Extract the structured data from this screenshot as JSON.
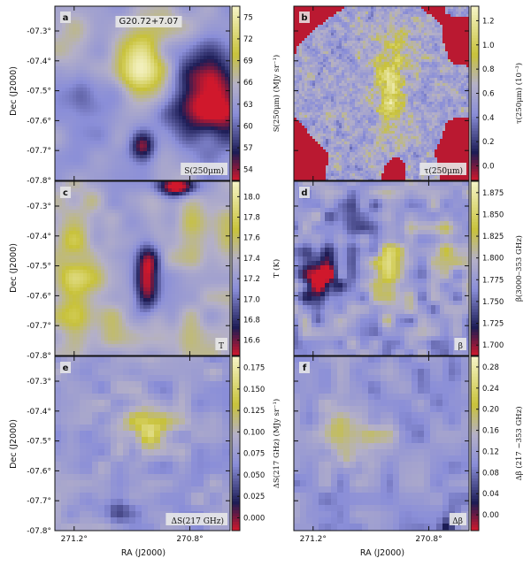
{
  "figure": {
    "title": "G20.72+7.07",
    "dec_ticks": [
      "-07.3°",
      "-07.4°",
      "-07.5°",
      "-07.6°",
      "-07.7°",
      "-07.8°"
    ],
    "ra_ticks": [
      "271.2°",
      "270.8°"
    ],
    "dec_label": "Dec (J2000)",
    "ra_label": "RA (J2000)",
    "colormap": [
      "#d0182c",
      "#1c1c55",
      "#8a8ed8",
      "#b4b0c8",
      "#c8c23a",
      "#f6f4c8"
    ]
  },
  "panels": [
    {
      "letter": "a",
      "box_label": "S(250μm)",
      "cbar_label": "S(250μm) (MJy sr⁻¹)",
      "cbar_ticks": [
        "75",
        "72",
        "69",
        "66",
        "63",
        "60",
        "57",
        "54"
      ],
      "cbar_range": [
        52.5,
        76.5
      ],
      "cbar_tick_values": [
        75,
        72,
        69,
        66,
        63,
        60,
        57,
        54
      ],
      "map": "smooth_a"
    },
    {
      "letter": "b",
      "box_label": "τ(250μm)",
      "cbar_label": "τ(250μm) (10⁻³)",
      "cbar_ticks": [
        "1.2",
        "1.0",
        "0.8",
        "0.6",
        "0.4",
        "0.2",
        "0.0"
      ],
      "cbar_range": [
        -0.12,
        1.32
      ],
      "cbar_tick_values": [
        1.2,
        1.0,
        0.8,
        0.6,
        0.4,
        0.2,
        0.0
      ],
      "map": "noisy_b"
    },
    {
      "letter": "c",
      "box_label": "T",
      "cbar_label": "T (K)",
      "cbar_ticks": [
        "18.0",
        "17.8",
        "17.6",
        "17.4",
        "17.2",
        "17.0",
        "16.8",
        "16.6"
      ],
      "cbar_range": [
        16.45,
        18.15
      ],
      "cbar_tick_values": [
        18.0,
        17.8,
        17.6,
        17.4,
        17.2,
        17.0,
        16.8,
        16.6
      ],
      "map": "smooth_c"
    },
    {
      "letter": "d",
      "box_label": "β",
      "cbar_label": "β(3000–353 GHz)",
      "cbar_ticks": [
        "1.875",
        "1.850",
        "1.825",
        "1.800",
        "1.775",
        "1.750",
        "1.725",
        "1.700"
      ],
      "cbar_range": [
        1.688,
        1.888
      ],
      "cbar_tick_values": [
        1.875,
        1.85,
        1.825,
        1.8,
        1.775,
        1.75,
        1.725,
        1.7
      ],
      "map": "blocky_d"
    },
    {
      "letter": "e",
      "box_label": "ΔS(217 GHz)",
      "cbar_label": "ΔS(217 GHz) (MJy sr⁻¹)",
      "cbar_ticks": [
        "0.175",
        "0.150",
        "0.125",
        "0.100",
        "0.075",
        "0.050",
        "0.025",
        "0.000"
      ],
      "cbar_range": [
        -0.015,
        0.188
      ],
      "cbar_tick_values": [
        0.175,
        0.15,
        0.125,
        0.1,
        0.075,
        0.05,
        0.025,
        0.0
      ],
      "map": "blocky_e"
    },
    {
      "letter": "f",
      "box_label": "Δβ",
      "cbar_label": "Δβ (217 −353 GHz)",
      "cbar_ticks": [
        "0.28",
        "0.24",
        "0.20",
        "0.16",
        "0.12",
        "0.08",
        "0.04",
        "0.00"
      ],
      "cbar_range": [
        -0.03,
        0.3
      ],
      "cbar_tick_values": [
        0.28,
        0.24,
        0.2,
        0.16,
        0.12,
        0.08,
        0.04,
        0.0
      ],
      "map": "blocky_f"
    }
  ]
}
